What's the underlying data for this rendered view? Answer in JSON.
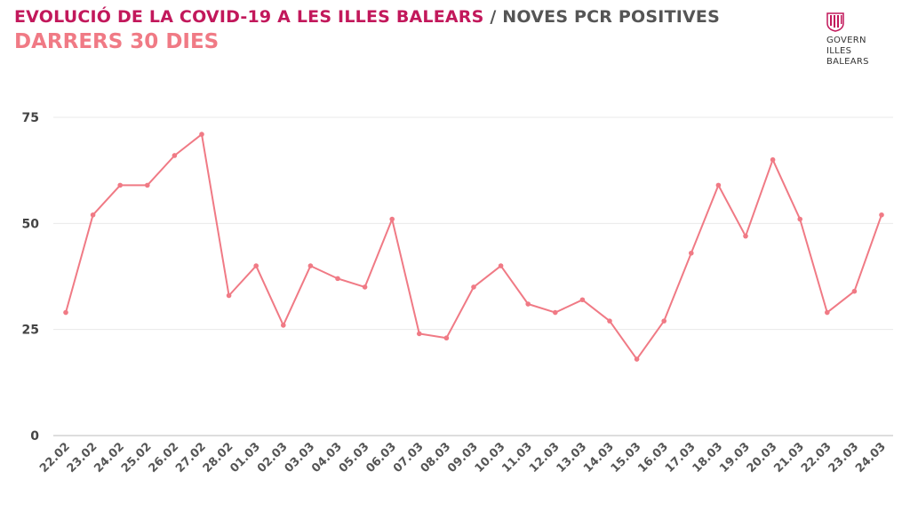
{
  "header": {
    "title_main": "EVOLUCIÓ DE LA COVID-19 A LES ILLES BALEARS",
    "title_sep": " / ",
    "title_sub": "NOVES PCR POSITIVES",
    "subtitle": "DARRERS 30 DIES"
  },
  "logo": {
    "line1": "GOVERN",
    "line2": "ILLES",
    "line3": "BALEARS"
  },
  "colors": {
    "line": "#f07a85",
    "title": "#c2185b",
    "subtitle": "#f07a85",
    "grid": "#e9e9e9"
  },
  "chart_data": {
    "type": "line",
    "title": "EVOLUCIÓ DE LA COVID-19 A LES ILLES BALEARS / NOVES PCR POSITIVES",
    "subtitle": "DARRERS 30 DIES",
    "xlabel": "",
    "ylabel": "",
    "ylim": [
      0,
      75
    ],
    "yticks": [
      0,
      25,
      50,
      75
    ],
    "grid": true,
    "categories": [
      "22.02",
      "23.02",
      "24.02",
      "25.02",
      "26.02",
      "27.02",
      "28.02",
      "01.03",
      "02.03",
      "03.03",
      "04.03",
      "05.03",
      "06.03",
      "07.03",
      "08.03",
      "09.03",
      "10.03",
      "11.03",
      "12.03",
      "13.03",
      "14.03",
      "15.03",
      "16.03",
      "17.03",
      "18.03",
      "19.03",
      "20.03",
      "21.03",
      "22.03",
      "23.03",
      "24.03"
    ],
    "series": [
      {
        "values": [
          29,
          52,
          59,
          59,
          66,
          71,
          33,
          40,
          26,
          40,
          37,
          35,
          51,
          24,
          23,
          35,
          40,
          31,
          29,
          32,
          27,
          18,
          27,
          43,
          59,
          47,
          65,
          51,
          29,
          34,
          52
        ]
      }
    ]
  }
}
